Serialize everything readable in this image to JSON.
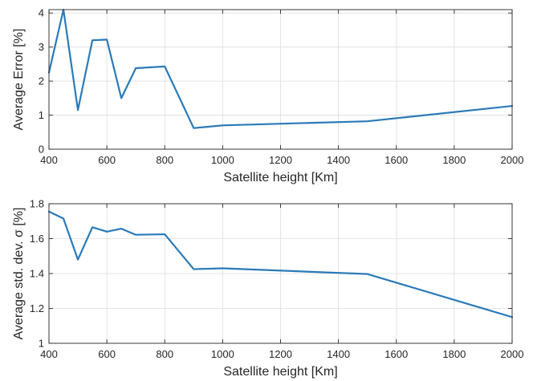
{
  "chart_data": [
    {
      "type": "line",
      "xlabel": "Satellite height [Km]",
      "ylabel": "Average Error [%]",
      "xlim": [
        400,
        2000
      ],
      "ylim": [
        0,
        4.1
      ],
      "xticks": [
        400,
        600,
        800,
        1000,
        1200,
        1400,
        1600,
        1800,
        2000
      ],
      "yticks": [
        0,
        1,
        2,
        3,
        4
      ],
      "grid": true,
      "color": "#2a7ab8",
      "series": [
        {
          "x": [
            400,
            450,
            500,
            550,
            600,
            650,
            700,
            800,
            900,
            1000,
            1500,
            2000
          ],
          "y": [
            2.25,
            4.1,
            1.15,
            3.2,
            3.22,
            1.5,
            2.38,
            2.43,
            0.62,
            0.7,
            0.82,
            1.27
          ]
        }
      ]
    },
    {
      "type": "line",
      "xlabel": "Satellite height [Km]",
      "ylabel": "Average std. dev. σ [%]",
      "xlim": [
        400,
        2000
      ],
      "ylim": [
        1,
        1.8
      ],
      "xticks": [
        400,
        600,
        800,
        1000,
        1200,
        1400,
        1600,
        1800,
        2000
      ],
      "yticks": [
        1,
        1.2,
        1.4,
        1.6,
        1.8
      ],
      "grid": true,
      "color": "#2a7ab8",
      "series": [
        {
          "x": [
            400,
            450,
            500,
            550,
            600,
            650,
            700,
            800,
            900,
            1000,
            1500,
            2000
          ],
          "y": [
            1.755,
            1.715,
            1.48,
            1.665,
            1.64,
            1.657,
            1.622,
            1.625,
            1.425,
            1.43,
            1.397,
            1.15
          ]
        }
      ]
    }
  ]
}
